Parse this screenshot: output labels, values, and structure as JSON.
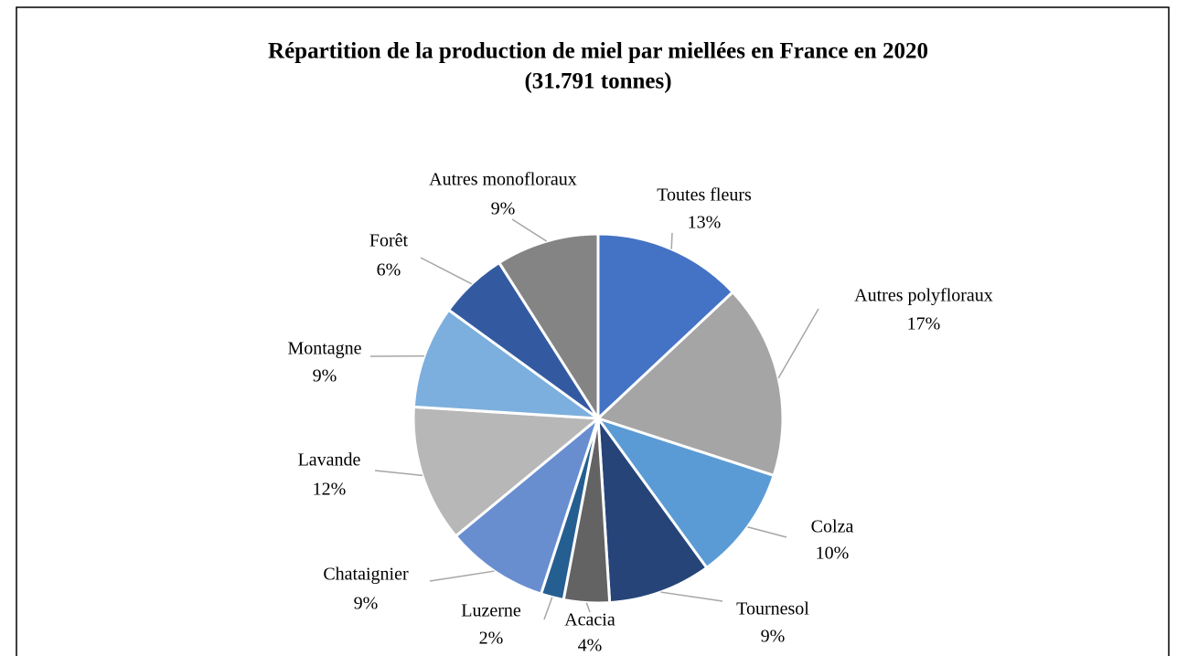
{
  "chart_data": {
    "type": "pie",
    "title": "Répartition de la production de miel par miellées en France en 2020",
    "subtitle": "(31.791 tonnes)",
    "categories": [
      "Toutes fleurs",
      "Autres polyfloraux",
      "Colza",
      "Tournesol",
      "Acacia",
      "Luzerne",
      "Chataignier",
      "Lavande",
      "Montagne",
      "Forêt",
      "Autres monofloraux"
    ],
    "values": [
      13,
      17,
      10,
      9,
      4,
      2,
      9,
      12,
      9,
      6,
      9
    ],
    "value_labels": [
      "13%",
      "17%",
      "10%",
      "9%",
      "4%",
      "2%",
      "9%",
      "12%",
      "9%",
      "6%",
      "9%"
    ],
    "colors": [
      "#4472c4",
      "#a5a5a5",
      "#5b9bd5",
      "#264478",
      "#636363",
      "#255e91",
      "#698ed0",
      "#b7b7b7",
      "#7cafdd",
      "#335aa1",
      "#848484"
    ]
  }
}
